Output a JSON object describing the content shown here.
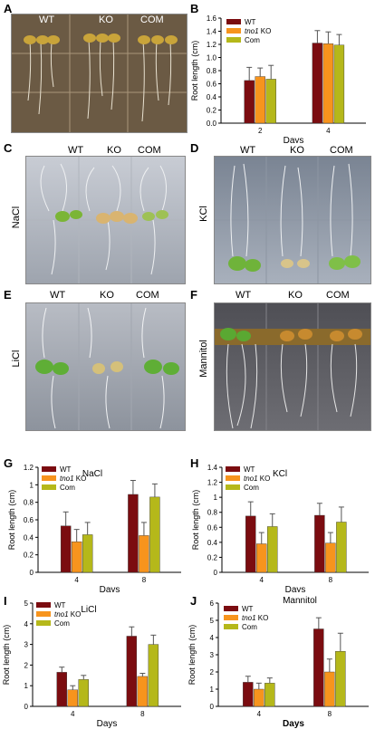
{
  "panels": {
    "A": {
      "letter": "A",
      "labels": [
        "WT",
        "KO",
        "COM"
      ]
    },
    "C": {
      "letter": "C",
      "labels": [
        "WT",
        "KO",
        "COM"
      ],
      "treatment": "NaCl"
    },
    "D": {
      "letter": "D",
      "labels": [
        "WT",
        "KO",
        "COM"
      ],
      "treatment": "KCl"
    },
    "E": {
      "letter": "E",
      "labels": [
        "WT",
        "KO",
        "COM"
      ],
      "treatment": "LiCl"
    },
    "F": {
      "letter": "F",
      "labels": [
        "WT",
        "KO",
        "COM"
      ],
      "treatment": "Mannitol"
    }
  },
  "colors": {
    "wt": "#7b0c10",
    "ko": "#f7941d",
    "com": "#b5b81a"
  },
  "legend": {
    "wt": "WT",
    "ko_italic": "tno1",
    "ko_rest": " KO",
    "com": "Com"
  },
  "chart_data": [
    {
      "panel": "B",
      "type": "bar",
      "title": "",
      "xlabel": "Days",
      "ylabel": "Root length (cm)",
      "categories": [
        "2",
        "4"
      ],
      "ylim": [
        0,
        1.6
      ],
      "yticks": [
        0.0,
        0.2,
        0.4,
        0.6,
        0.8,
        1.0,
        1.2,
        1.4,
        1.6
      ],
      "series": [
        {
          "name": "WT",
          "values": [
            0.65,
            1.22
          ],
          "errors": [
            0.2,
            0.19
          ]
        },
        {
          "name": "tno1 KO",
          "values": [
            0.71,
            1.21
          ],
          "errors": [
            0.13,
            0.18
          ]
        },
        {
          "name": "Com",
          "values": [
            0.67,
            1.19
          ],
          "errors": [
            0.21,
            0.16
          ]
        }
      ]
    },
    {
      "panel": "G",
      "type": "bar",
      "title": "NaCl",
      "xlabel": "Days",
      "ylabel": "Root length (cm)",
      "categories": [
        "4",
        "8"
      ],
      "ylim": [
        0,
        1.2
      ],
      "yticks": [
        0,
        0.2,
        0.4,
        0.6,
        0.8,
        1,
        1.2
      ],
      "series": [
        {
          "name": "WT",
          "values": [
            0.53,
            0.89
          ],
          "errors": [
            0.16,
            0.16
          ]
        },
        {
          "name": "tno1 KO",
          "values": [
            0.35,
            0.42
          ],
          "errors": [
            0.14,
            0.15
          ]
        },
        {
          "name": "Com",
          "values": [
            0.43,
            0.86
          ],
          "errors": [
            0.14,
            0.15
          ]
        }
      ]
    },
    {
      "panel": "H",
      "type": "bar",
      "title": "KCl",
      "xlabel": "Days",
      "ylabel": "Root length (cm)",
      "categories": [
        "4",
        "8"
      ],
      "ylim": [
        0,
        1.4
      ],
      "yticks": [
        0,
        0.2,
        0.4,
        0.6,
        0.8,
        1,
        1.2,
        1.4
      ],
      "series": [
        {
          "name": "WT",
          "values": [
            0.75,
            0.76
          ],
          "errors": [
            0.19,
            0.16
          ]
        },
        {
          "name": "tno1 KO",
          "values": [
            0.38,
            0.39
          ],
          "errors": [
            0.15,
            0.14
          ]
        },
        {
          "name": "Com",
          "values": [
            0.61,
            0.67
          ],
          "errors": [
            0.17,
            0.2
          ]
        }
      ]
    },
    {
      "panel": "I",
      "type": "bar",
      "title": "LiCl",
      "xlabel": "Days",
      "ylabel": "Root length (cm)",
      "categories": [
        "4",
        "8"
      ],
      "ylim": [
        0,
        5
      ],
      "yticks": [
        0,
        1,
        2,
        3,
        4,
        5
      ],
      "series": [
        {
          "name": "WT",
          "values": [
            1.65,
            3.4
          ],
          "errors": [
            0.25,
            0.45
          ]
        },
        {
          "name": "tno1 KO",
          "values": [
            0.8,
            1.45
          ],
          "errors": [
            0.2,
            0.15
          ]
        },
        {
          "name": "Com",
          "values": [
            1.3,
            3.0
          ],
          "errors": [
            0.2,
            0.45
          ]
        }
      ]
    },
    {
      "panel": "J",
      "type": "bar",
      "title": "Mannitol",
      "xlabel": "Days",
      "ylabel": "Root length (cm)",
      "categories": [
        "4",
        "8"
      ],
      "ylim": [
        0,
        6
      ],
      "yticks": [
        0,
        1,
        2,
        3,
        4,
        5,
        6
      ],
      "series": [
        {
          "name": "WT",
          "values": [
            1.4,
            4.5
          ],
          "errors": [
            0.35,
            0.65
          ]
        },
        {
          "name": "tno1 KO",
          "values": [
            1.0,
            2.0
          ],
          "errors": [
            0.35,
            0.75
          ]
        },
        {
          "name": "Com",
          "values": [
            1.35,
            3.2
          ],
          "errors": [
            0.3,
            1.05
          ]
        }
      ]
    }
  ]
}
